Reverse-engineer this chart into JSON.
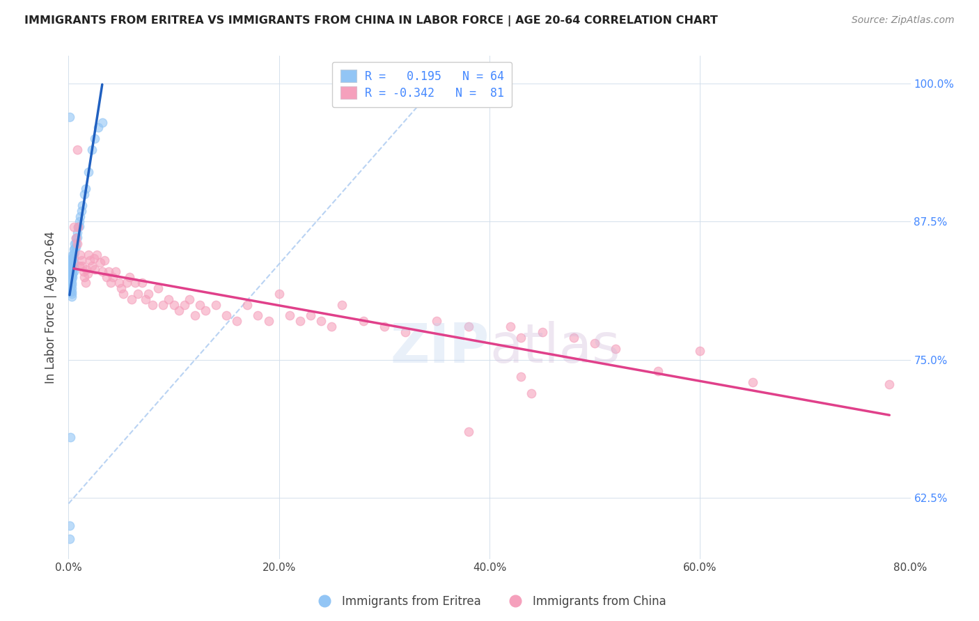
{
  "title": "IMMIGRANTS FROM ERITREA VS IMMIGRANTS FROM CHINA IN LABOR FORCE | AGE 20-64 CORRELATION CHART",
  "source": "Source: ZipAtlas.com",
  "ylabel": "In Labor Force | Age 20-64",
  "xlim": [
    0.0,
    0.8
  ],
  "ylim": [
    0.57,
    1.025
  ],
  "watermark": "ZIPatlas",
  "blue_color": "#92c5f5",
  "pink_color": "#f5a0bc",
  "trendline_blue": "#2060c0",
  "trendline_pink": "#e0408a",
  "refline_color": "#a8c8f0",
  "eritrea_x": [
    0.001,
    0.001,
    0.001,
    0.002,
    0.002,
    0.002,
    0.002,
    0.002,
    0.002,
    0.002,
    0.002,
    0.002,
    0.002,
    0.003,
    0.003,
    0.003,
    0.003,
    0.003,
    0.003,
    0.003,
    0.003,
    0.003,
    0.003,
    0.003,
    0.003,
    0.003,
    0.004,
    0.004,
    0.004,
    0.004,
    0.004,
    0.004,
    0.004,
    0.005,
    0.005,
    0.005,
    0.005,
    0.005,
    0.005,
    0.006,
    0.006,
    0.006,
    0.007,
    0.007,
    0.007,
    0.008,
    0.008,
    0.009,
    0.01,
    0.01,
    0.011,
    0.012,
    0.013,
    0.015,
    0.016,
    0.019,
    0.022,
    0.025,
    0.028,
    0.032,
    0.001,
    0.002,
    0.001,
    0.001
  ],
  "eritrea_y": [
    0.838,
    0.835,
    0.83,
    0.84,
    0.836,
    0.832,
    0.828,
    0.825,
    0.822,
    0.82,
    0.817,
    0.815,
    0.812,
    0.842,
    0.838,
    0.835,
    0.832,
    0.829,
    0.826,
    0.823,
    0.82,
    0.818,
    0.815,
    0.812,
    0.81,
    0.807,
    0.845,
    0.841,
    0.837,
    0.834,
    0.831,
    0.828,
    0.825,
    0.85,
    0.846,
    0.842,
    0.838,
    0.834,
    0.83,
    0.855,
    0.851,
    0.847,
    0.86,
    0.856,
    0.852,
    0.865,
    0.861,
    0.87,
    0.875,
    0.871,
    0.88,
    0.885,
    0.89,
    0.9,
    0.905,
    0.92,
    0.94,
    0.95,
    0.96,
    0.965,
    0.97,
    0.68,
    0.6,
    0.588
  ],
  "china_x": [
    0.005,
    0.007,
    0.008,
    0.009,
    0.01,
    0.011,
    0.012,
    0.013,
    0.014,
    0.015,
    0.016,
    0.017,
    0.018,
    0.019,
    0.02,
    0.022,
    0.024,
    0.025,
    0.027,
    0.03,
    0.032,
    0.034,
    0.036,
    0.038,
    0.04,
    0.042,
    0.045,
    0.048,
    0.05,
    0.052,
    0.055,
    0.058,
    0.06,
    0.063,
    0.066,
    0.07,
    0.073,
    0.076,
    0.08,
    0.085,
    0.09,
    0.095,
    0.1,
    0.105,
    0.11,
    0.115,
    0.12,
    0.125,
    0.13,
    0.14,
    0.15,
    0.16,
    0.17,
    0.18,
    0.19,
    0.2,
    0.21,
    0.22,
    0.23,
    0.24,
    0.25,
    0.26,
    0.28,
    0.3,
    0.32,
    0.35,
    0.38,
    0.42,
    0.43,
    0.45,
    0.48,
    0.5,
    0.52,
    0.56,
    0.6,
    0.65,
    0.78,
    0.44,
    0.43,
    0.008,
    0.38
  ],
  "china_y": [
    0.87,
    0.86,
    0.855,
    0.87,
    0.835,
    0.845,
    0.84,
    0.835,
    0.83,
    0.825,
    0.82,
    0.832,
    0.828,
    0.845,
    0.84,
    0.835,
    0.842,
    0.832,
    0.845,
    0.838,
    0.83,
    0.84,
    0.825,
    0.83,
    0.82,
    0.825,
    0.83,
    0.82,
    0.815,
    0.81,
    0.82,
    0.825,
    0.805,
    0.82,
    0.81,
    0.82,
    0.805,
    0.81,
    0.8,
    0.815,
    0.8,
    0.805,
    0.8,
    0.795,
    0.8,
    0.805,
    0.79,
    0.8,
    0.795,
    0.8,
    0.79,
    0.785,
    0.8,
    0.79,
    0.785,
    0.81,
    0.79,
    0.785,
    0.79,
    0.785,
    0.78,
    0.8,
    0.785,
    0.78,
    0.775,
    0.785,
    0.78,
    0.78,
    0.77,
    0.775,
    0.77,
    0.765,
    0.76,
    0.74,
    0.758,
    0.73,
    0.728,
    0.72,
    0.735,
    0.94,
    0.685
  ]
}
